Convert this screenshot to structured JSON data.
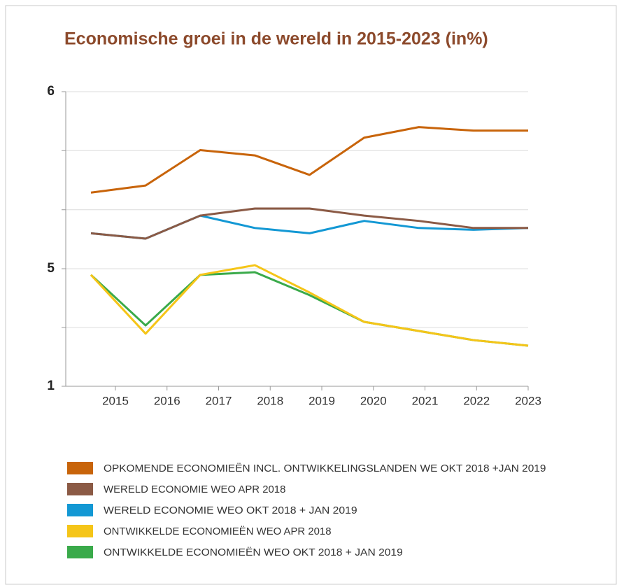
{
  "chart_data": {
    "type": "line",
    "title": "Economische groei in de wereld in 2015-2023 (in%)",
    "categories": [
      "2015",
      "2016",
      "2017",
      "2018",
      "2019",
      "2020",
      "2021",
      "2022",
      "2023"
    ],
    "ylim": [
      1,
      6
    ],
    "yticks": [
      6,
      5,
      1
    ],
    "y_scale": "piecewise",
    "minor_yticks": [
      5.667,
      5.333,
      3
    ],
    "grid": true,
    "series": [
      {
        "name": "OPKOMENDE ECONOMIEËN INCL. ONTWIKKELINGSLANDEN WE OKT 2018 +JAN 2019",
        "color": "#c8640a",
        "values": [
          5.43,
          5.47,
          5.67,
          5.64,
          5.53,
          5.74,
          5.8,
          5.78,
          5.78
        ]
      },
      {
        "name": "WERELD ECONOMIE WEO APR 2018",
        "color": "#8b5a45",
        "values": [
          5.2,
          5.17,
          5.3,
          5.34,
          5.34,
          5.3,
          5.27,
          5.23,
          5.23
        ]
      },
      {
        "name": "WERELD ECONOMIE WEO OKT 2018 + JAN 2019",
        "color": "#1398d4",
        "values": [
          5.2,
          5.17,
          5.3,
          5.23,
          5.2,
          5.27,
          5.23,
          5.22,
          5.23
        ]
      },
      {
        "name": "ONTWIKKELDE ECONOMIEËN WEO APR 2018",
        "color": "#f5c518",
        "values": [
          4.79,
          2.79,
          4.79,
          5.02,
          4.19,
          3.19,
          2.88,
          2.57,
          2.38
        ]
      },
      {
        "name": "ONTWIKKELDE ECONOMIEËN WEO OKT 2018 + JAN 2019",
        "color": "#3aaa4a",
        "values": [
          4.79,
          3.07,
          4.79,
          4.88,
          4.1,
          3.19,
          2.88,
          2.57,
          2.38
        ]
      }
    ]
  }
}
